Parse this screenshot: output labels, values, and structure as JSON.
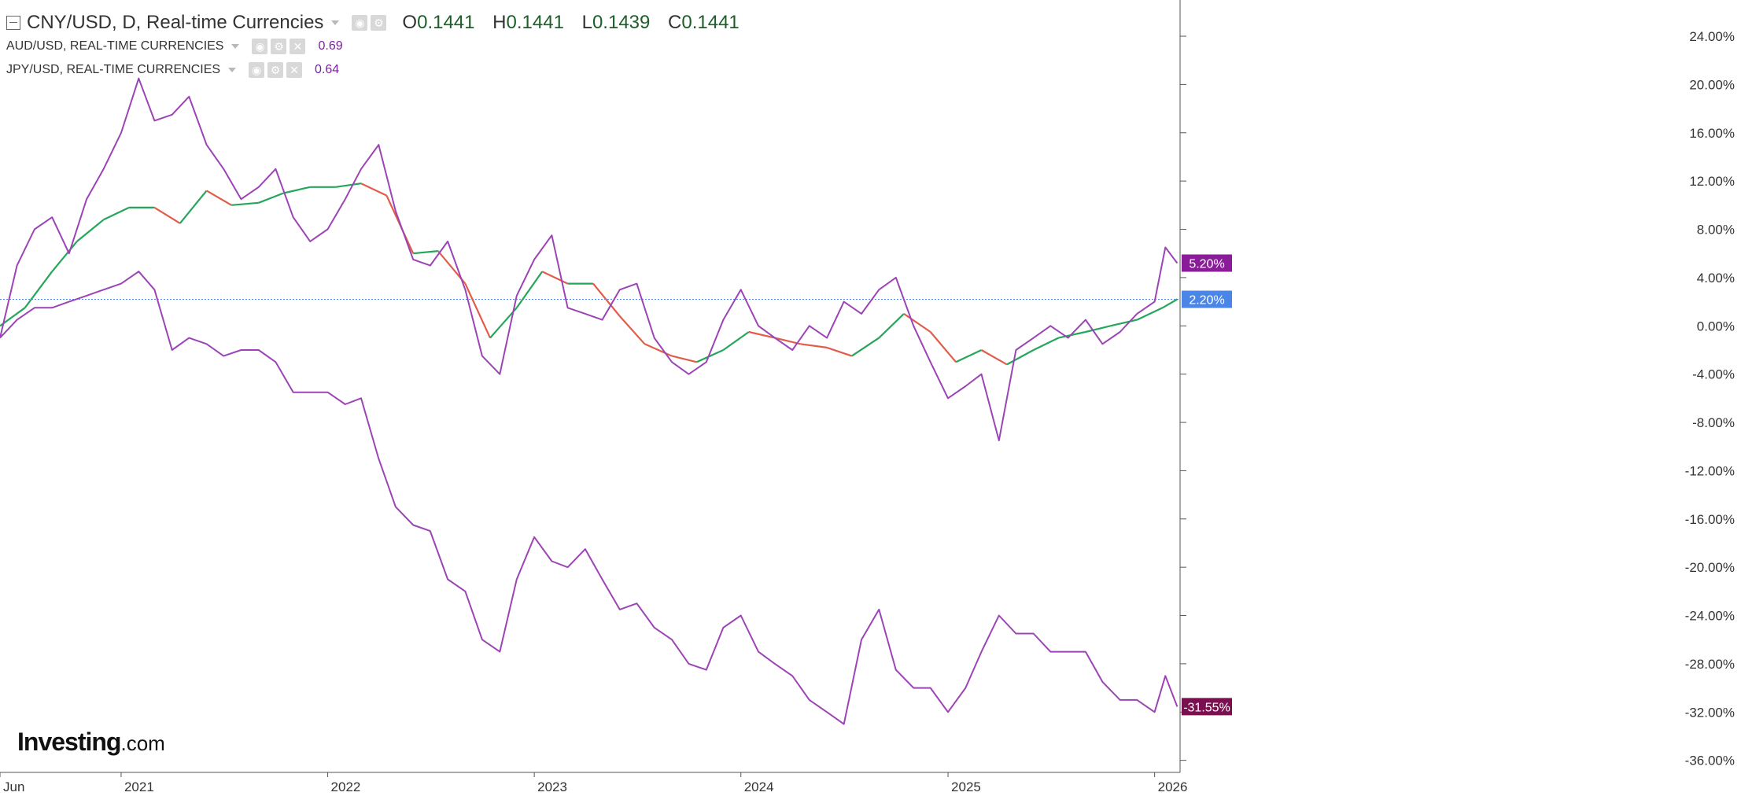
{
  "legend": {
    "main": {
      "symbol": "CNY/USD, D, Real-time Currencies",
      "open_label": "O",
      "open": "0.1441",
      "high_label": "H",
      "high": "0.1441",
      "low_label": "L",
      "low": "0.1439",
      "close_label": "C",
      "close": "0.1441"
    },
    "aud": {
      "symbol": "AUD/USD, REAL-TIME CURRENCIES",
      "value": "0.69"
    },
    "jpy": {
      "symbol": "JPY/USD, REAL-TIME CURRENCIES",
      "value": "0.64"
    }
  },
  "logo": {
    "brand": "Investing",
    "suffix": ".com"
  },
  "chart_data": {
    "type": "line",
    "y_axis_unit": "percent",
    "ylim": [
      -37,
      27
    ],
    "y_ticks": [
      24,
      20,
      16,
      12,
      8,
      4,
      0,
      -4,
      -8,
      -12,
      -16,
      -20,
      -24,
      -28,
      -32,
      -36
    ],
    "y_tick_labels": [
      "24.00%",
      "20.00%",
      "16.00%",
      "12.00%",
      "8.00%",
      "4.00%",
      "0.00%",
      "-4.00%",
      "-8.00%",
      "-12.00%",
      "-16.00%",
      "-20.00%",
      "-24.00%",
      "-28.00%",
      "-32.00%",
      "-36.00%"
    ],
    "xlim": [
      "2020-06-01",
      "2026-02-15"
    ],
    "x_ticks": [
      {
        "date": "2020-06-01",
        "label": "Jun"
      },
      {
        "date": "2021-01-01",
        "label": "2021"
      },
      {
        "date": "2022-01-01",
        "label": "2022"
      },
      {
        "date": "2023-01-01",
        "label": "2023"
      },
      {
        "date": "2024-01-01",
        "label": "2024"
      },
      {
        "date": "2025-01-01",
        "label": "2025"
      },
      {
        "date": "2026-01-01",
        "label": "2026"
      }
    ],
    "reference_line": {
      "value": 2.2,
      "label": "2.20%"
    },
    "series": [
      {
        "name": "CNY/USD",
        "style": "candles",
        "up_color": "#26a65b",
        "down_color": "#e25c4b",
        "last_label": "2.20%",
        "label_color": "#4a86e8",
        "points": [
          [
            "2020-06-01",
            0.0
          ],
          [
            "2020-07-15",
            1.5
          ],
          [
            "2020-09-01",
            4.5
          ],
          [
            "2020-10-15",
            7.0
          ],
          [
            "2020-12-01",
            8.8
          ],
          [
            "2021-01-15",
            9.8
          ],
          [
            "2021-03-01",
            9.8
          ],
          [
            "2021-04-15",
            8.5
          ],
          [
            "2021-06-01",
            11.2
          ],
          [
            "2021-07-15",
            10.0
          ],
          [
            "2021-09-01",
            10.2
          ],
          [
            "2021-10-15",
            11.0
          ],
          [
            "2021-12-01",
            11.5
          ],
          [
            "2022-01-15",
            11.5
          ],
          [
            "2022-03-01",
            11.8
          ],
          [
            "2022-04-15",
            10.8
          ],
          [
            "2022-06-01",
            6.0
          ],
          [
            "2022-07-15",
            6.2
          ],
          [
            "2022-09-01",
            3.5
          ],
          [
            "2022-10-15",
            -1.0
          ],
          [
            "2022-12-01",
            1.5
          ],
          [
            "2023-01-15",
            4.5
          ],
          [
            "2023-03-01",
            3.5
          ],
          [
            "2023-04-15",
            3.5
          ],
          [
            "2023-06-01",
            0.8
          ],
          [
            "2023-07-15",
            -1.5
          ],
          [
            "2023-09-01",
            -2.5
          ],
          [
            "2023-10-15",
            -3.0
          ],
          [
            "2023-12-01",
            -2.0
          ],
          [
            "2024-01-15",
            -0.5
          ],
          [
            "2024-03-01",
            -1.0
          ],
          [
            "2024-04-15",
            -1.5
          ],
          [
            "2024-06-01",
            -1.8
          ],
          [
            "2024-07-15",
            -2.5
          ],
          [
            "2024-09-01",
            -1.0
          ],
          [
            "2024-10-15",
            1.0
          ],
          [
            "2024-12-01",
            -0.5
          ],
          [
            "2025-01-15",
            -3.0
          ],
          [
            "2025-03-01",
            -2.0
          ],
          [
            "2025-04-15",
            -3.2
          ],
          [
            "2025-06-01",
            -2.0
          ],
          [
            "2025-07-15",
            -1.0
          ],
          [
            "2025-09-01",
            -0.5
          ],
          [
            "2025-10-15",
            0.0
          ],
          [
            "2025-12-01",
            0.5
          ],
          [
            "2026-01-15",
            1.5
          ],
          [
            "2026-02-10",
            2.2
          ]
        ]
      },
      {
        "name": "AUD/USD",
        "style": "line",
        "color": "#9c44b5",
        "last_label": "5.20%",
        "label_color": "#8a1c9a",
        "points": [
          [
            "2020-06-01",
            -1.0
          ],
          [
            "2020-07-01",
            5.0
          ],
          [
            "2020-08-01",
            8.0
          ],
          [
            "2020-09-01",
            9.0
          ],
          [
            "2020-10-01",
            6.0
          ],
          [
            "2020-11-01",
            10.5
          ],
          [
            "2020-12-01",
            13.0
          ],
          [
            "2021-01-01",
            16.0
          ],
          [
            "2021-02-01",
            20.5
          ],
          [
            "2021-03-01",
            17.0
          ],
          [
            "2021-04-01",
            17.5
          ],
          [
            "2021-05-01",
            19.0
          ],
          [
            "2021-06-01",
            15.0
          ],
          [
            "2021-07-01",
            13.0
          ],
          [
            "2021-08-01",
            10.5
          ],
          [
            "2021-09-01",
            11.5
          ],
          [
            "2021-10-01",
            13.0
          ],
          [
            "2021-11-01",
            9.0
          ],
          [
            "2021-12-01",
            7.0
          ],
          [
            "2022-01-01",
            8.0
          ],
          [
            "2022-02-01",
            10.5
          ],
          [
            "2022-03-01",
            13.0
          ],
          [
            "2022-04-01",
            15.0
          ],
          [
            "2022-05-01",
            9.5
          ],
          [
            "2022-06-01",
            5.5
          ],
          [
            "2022-07-01",
            5.0
          ],
          [
            "2022-08-01",
            7.0
          ],
          [
            "2022-09-01",
            3.0
          ],
          [
            "2022-10-01",
            -2.5
          ],
          [
            "2022-11-01",
            -4.0
          ],
          [
            "2022-12-01",
            2.5
          ],
          [
            "2023-01-01",
            5.5
          ],
          [
            "2023-02-01",
            7.5
          ],
          [
            "2023-03-01",
            1.5
          ],
          [
            "2023-04-01",
            1.0
          ],
          [
            "2023-05-01",
            0.5
          ],
          [
            "2023-06-01",
            3.0
          ],
          [
            "2023-07-01",
            3.5
          ],
          [
            "2023-08-01",
            -1.0
          ],
          [
            "2023-09-01",
            -3.0
          ],
          [
            "2023-10-01",
            -4.0
          ],
          [
            "2023-11-01",
            -3.0
          ],
          [
            "2023-12-01",
            0.5
          ],
          [
            "2024-01-01",
            3.0
          ],
          [
            "2024-02-01",
            0.0
          ],
          [
            "2024-03-01",
            -1.0
          ],
          [
            "2024-04-01",
            -2.0
          ],
          [
            "2024-05-01",
            0.0
          ],
          [
            "2024-06-01",
            -1.0
          ],
          [
            "2024-07-01",
            2.0
          ],
          [
            "2024-08-01",
            1.0
          ],
          [
            "2024-09-01",
            3.0
          ],
          [
            "2024-10-01",
            4.0
          ],
          [
            "2024-11-01",
            0.0
          ],
          [
            "2024-12-01",
            -3.0
          ],
          [
            "2025-01-01",
            -6.0
          ],
          [
            "2025-02-01",
            -5.0
          ],
          [
            "2025-03-01",
            -4.0
          ],
          [
            "2025-04-01",
            -9.5
          ],
          [
            "2025-05-01",
            -2.0
          ],
          [
            "2025-06-01",
            -1.0
          ],
          [
            "2025-07-01",
            0.0
          ],
          [
            "2025-08-01",
            -1.0
          ],
          [
            "2025-09-01",
            0.5
          ],
          [
            "2025-10-01",
            -1.5
          ],
          [
            "2025-11-01",
            -0.5
          ],
          [
            "2025-12-01",
            1.0
          ],
          [
            "2026-01-01",
            2.0
          ],
          [
            "2026-01-20",
            6.5
          ],
          [
            "2026-02-10",
            5.2
          ]
        ]
      },
      {
        "name": "JPY/USD",
        "style": "line",
        "color": "#9c44b5",
        "last_label": "-31.55%",
        "label_color": "#7a1050",
        "points": [
          [
            "2020-06-01",
            -1.0
          ],
          [
            "2020-07-01",
            0.5
          ],
          [
            "2020-08-01",
            1.5
          ],
          [
            "2020-09-01",
            1.5
          ],
          [
            "2020-10-01",
            2.0
          ],
          [
            "2020-11-01",
            2.5
          ],
          [
            "2020-12-01",
            3.0
          ],
          [
            "2021-01-01",
            3.5
          ],
          [
            "2021-02-01",
            4.5
          ],
          [
            "2021-03-01",
            3.0
          ],
          [
            "2021-04-01",
            -2.0
          ],
          [
            "2021-05-01",
            -1.0
          ],
          [
            "2021-06-01",
            -1.5
          ],
          [
            "2021-07-01",
            -2.5
          ],
          [
            "2021-08-01",
            -2.0
          ],
          [
            "2021-09-01",
            -2.0
          ],
          [
            "2021-10-01",
            -3.0
          ],
          [
            "2021-11-01",
            -5.5
          ],
          [
            "2021-12-01",
            -5.5
          ],
          [
            "2022-01-01",
            -5.5
          ],
          [
            "2022-02-01",
            -6.5
          ],
          [
            "2022-03-01",
            -6.0
          ],
          [
            "2022-04-01",
            -11.0
          ],
          [
            "2022-05-01",
            -15.0
          ],
          [
            "2022-06-01",
            -16.5
          ],
          [
            "2022-07-01",
            -17.0
          ],
          [
            "2022-08-01",
            -21.0
          ],
          [
            "2022-09-01",
            -22.0
          ],
          [
            "2022-10-01",
            -26.0
          ],
          [
            "2022-11-01",
            -27.0
          ],
          [
            "2022-12-01",
            -21.0
          ],
          [
            "2023-01-01",
            -17.5
          ],
          [
            "2023-02-01",
            -19.5
          ],
          [
            "2023-03-01",
            -20.0
          ],
          [
            "2023-04-01",
            -18.5
          ],
          [
            "2023-05-01",
            -21.0
          ],
          [
            "2023-06-01",
            -23.5
          ],
          [
            "2023-07-01",
            -23.0
          ],
          [
            "2023-08-01",
            -25.0
          ],
          [
            "2023-09-01",
            -26.0
          ],
          [
            "2023-10-01",
            -28.0
          ],
          [
            "2023-11-01",
            -28.5
          ],
          [
            "2023-12-01",
            -25.0
          ],
          [
            "2024-01-01",
            -24.0
          ],
          [
            "2024-02-01",
            -27.0
          ],
          [
            "2024-03-01",
            -28.0
          ],
          [
            "2024-04-01",
            -29.0
          ],
          [
            "2024-05-01",
            -31.0
          ],
          [
            "2024-06-01",
            -32.0
          ],
          [
            "2024-07-01",
            -33.0
          ],
          [
            "2024-08-01",
            -26.0
          ],
          [
            "2024-09-01",
            -23.5
          ],
          [
            "2024-10-01",
            -28.5
          ],
          [
            "2024-11-01",
            -30.0
          ],
          [
            "2024-12-01",
            -30.0
          ],
          [
            "2025-01-01",
            -32.0
          ],
          [
            "2025-02-01",
            -30.0
          ],
          [
            "2025-03-01",
            -27.0
          ],
          [
            "2025-04-01",
            -24.0
          ],
          [
            "2025-05-01",
            -25.5
          ],
          [
            "2025-06-01",
            -25.5
          ],
          [
            "2025-07-01",
            -27.0
          ],
          [
            "2025-08-01",
            -27.0
          ],
          [
            "2025-09-01",
            -27.0
          ],
          [
            "2025-10-01",
            -29.5
          ],
          [
            "2025-11-01",
            -31.0
          ],
          [
            "2025-12-01",
            -31.0
          ],
          [
            "2026-01-01",
            -32.0
          ],
          [
            "2026-01-20",
            -29.0
          ],
          [
            "2026-02-10",
            -31.55
          ]
        ]
      }
    ]
  }
}
